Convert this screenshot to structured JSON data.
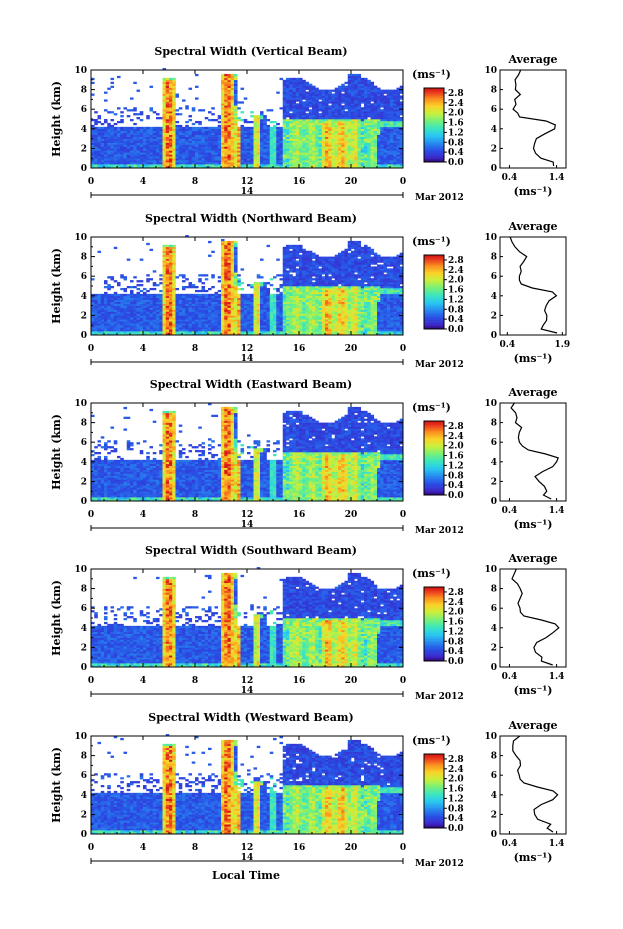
{
  "figure": {
    "xlabel": "Local Time",
    "date_label": "Mar 2012",
    "day_label": "14"
  },
  "chart_data": [
    {
      "type": "heatmap",
      "title": "Spectral Width (Vertical Beam)",
      "xlabel": "",
      "ylabel": "Height (km)",
      "x_ticks": [
        "0",
        "4",
        "8",
        "12",
        "16",
        "20",
        "0"
      ],
      "xlim": [
        0,
        24
      ],
      "y_ticks": [
        "0",
        "2",
        "4",
        "6",
        "8",
        "10"
      ],
      "ylim": [
        0,
        10
      ],
      "colorbar": {
        "label": "(ms⁻¹)",
        "ticks": [
          "0.0",
          "0.4",
          "0.8",
          "1.2",
          "1.6",
          "2.0",
          "2.4",
          "2.8"
        ],
        "range": [
          0,
          3.0
        ]
      },
      "profile": {
        "title": "Average",
        "xlabel": "(ms⁻¹)",
        "x_ticks": [
          "0.4",
          "1.4"
        ],
        "xlim": [
          0.2,
          1.6
        ],
        "heights": [
          0.2,
          0.6,
          1.0,
          1.5,
          2.0,
          2.5,
          3.0,
          3.5,
          4.0,
          4.4,
          4.8,
          5.2,
          5.6,
          6.0,
          6.5,
          7.0,
          7.5,
          8.0,
          8.5,
          9.0,
          9.5,
          10.0
        ],
        "values": [
          1.35,
          1.3,
          1.05,
          0.95,
          0.9,
          0.92,
          1.0,
          1.15,
          1.35,
          1.35,
          1.2,
          0.6,
          0.55,
          0.5,
          0.55,
          0.5,
          0.6,
          0.55,
          0.55,
          0.5,
          0.6,
          0.62
        ]
      }
    },
    {
      "type": "heatmap",
      "title": "Spectral Width (Northward Beam)",
      "xlabel": "",
      "ylabel": "Height (km)",
      "x_ticks": [
        "0",
        "4",
        "8",
        "12",
        "16",
        "20",
        "0"
      ],
      "xlim": [
        0,
        24
      ],
      "y_ticks": [
        "0",
        "2",
        "4",
        "6",
        "8",
        "10"
      ],
      "ylim": [
        0,
        10
      ],
      "colorbar": {
        "label": "(ms⁻¹)",
        "ticks": [
          "0.0",
          "0.4",
          "0.8",
          "1.2",
          "1.6",
          "2.0",
          "2.4",
          "2.8"
        ],
        "range": [
          0,
          3.0
        ]
      },
      "profile": {
        "title": "Average",
        "xlabel": "(ms⁻¹)",
        "x_ticks": [
          "0.4",
          "1.9"
        ],
        "xlim": [
          0.2,
          2.0
        ],
        "heights": [
          0.2,
          0.6,
          1.0,
          1.5,
          2.0,
          2.5,
          3.0,
          3.5,
          4.0,
          4.4,
          4.8,
          5.2,
          5.6,
          6.0,
          6.5,
          7.0,
          7.5,
          8.0,
          8.5,
          9.0,
          9.5,
          10.0
        ],
        "values": [
          1.75,
          1.3,
          1.4,
          1.45,
          1.5,
          1.4,
          1.45,
          1.55,
          1.75,
          1.65,
          1.1,
          0.8,
          0.75,
          0.7,
          0.75,
          0.72,
          0.85,
          0.95,
          0.75,
          0.6,
          0.5,
          0.45
        ]
      }
    },
    {
      "type": "heatmap",
      "title": "Spectral Width (Eastward Beam)",
      "xlabel": "",
      "ylabel": "Height (km)",
      "x_ticks": [
        "0",
        "4",
        "8",
        "12",
        "16",
        "20",
        "0"
      ],
      "xlim": [
        0,
        24
      ],
      "y_ticks": [
        "0",
        "2",
        "4",
        "6",
        "8",
        "10"
      ],
      "ylim": [
        0,
        10
      ],
      "colorbar": {
        "label": "(ms⁻¹)",
        "ticks": [
          "0.0",
          "0.4",
          "0.8",
          "1.2",
          "1.6",
          "2.0",
          "2.4",
          "2.8"
        ],
        "range": [
          0,
          3.0
        ]
      },
      "profile": {
        "title": "Average",
        "xlabel": "(ms⁻¹)",
        "x_ticks": [
          "0.4",
          "1.4"
        ],
        "xlim": [
          0.2,
          1.6
        ],
        "heights": [
          0.2,
          0.6,
          1.0,
          1.5,
          2.0,
          2.5,
          3.0,
          3.5,
          4.0,
          4.4,
          4.8,
          5.2,
          5.6,
          6.0,
          6.5,
          7.0,
          7.5,
          8.0,
          8.5,
          9.0,
          9.5,
          10.0
        ],
        "values": [
          1.3,
          1.1,
          1.2,
          1.15,
          1.05,
          0.95,
          1.1,
          1.3,
          1.42,
          1.45,
          1.15,
          0.8,
          0.68,
          0.62,
          0.6,
          0.6,
          0.65,
          0.55,
          0.55,
          0.5,
          0.45,
          0.52
        ]
      }
    },
    {
      "type": "heatmap",
      "title": "Spectral Width (Southward Beam)",
      "xlabel": "",
      "ylabel": "Height (km)",
      "x_ticks": [
        "0",
        "4",
        "8",
        "12",
        "16",
        "20",
        "0"
      ],
      "xlim": [
        0,
        24
      ],
      "y_ticks": [
        "0",
        "2",
        "4",
        "6",
        "8",
        "10"
      ],
      "ylim": [
        0,
        10
      ],
      "colorbar": {
        "label": "(ms⁻¹)",
        "ticks": [
          "0.0",
          "0.4",
          "0.8",
          "1.2",
          "1.6",
          "2.0",
          "2.4",
          "2.8"
        ],
        "range": [
          0,
          3.0
        ]
      },
      "profile": {
        "title": "Average",
        "xlabel": "(ms⁻¹)",
        "x_ticks": [
          "0.4",
          "1.4"
        ],
        "xlim": [
          0.2,
          1.6
        ],
        "heights": [
          0.2,
          0.6,
          1.0,
          1.5,
          2.0,
          2.5,
          3.0,
          3.5,
          4.0,
          4.4,
          4.8,
          5.2,
          5.6,
          6.0,
          6.5,
          7.0,
          7.5,
          8.0,
          8.5,
          9.0,
          9.5,
          10.0
        ],
        "values": [
          1.3,
          1.05,
          1.1,
          0.95,
          0.9,
          0.95,
          1.15,
          1.35,
          1.45,
          1.4,
          1.1,
          0.7,
          0.62,
          0.6,
          0.58,
          0.6,
          0.65,
          0.6,
          0.55,
          0.45,
          0.5,
          0.55
        ]
      }
    },
    {
      "type": "heatmap",
      "title": "Spectral Width (Westward Beam)",
      "xlabel": "",
      "ylabel": "Height (km)",
      "x_ticks": [
        "0",
        "4",
        "8",
        "12",
        "16",
        "20",
        "0"
      ],
      "xlim": [
        0,
        24
      ],
      "y_ticks": [
        "0",
        "2",
        "4",
        "6",
        "8",
        "10"
      ],
      "ylim": [
        0,
        10
      ],
      "colorbar": {
        "label": "(ms⁻¹)",
        "ticks": [
          "0.0",
          "0.4",
          "0.8",
          "1.2",
          "1.6",
          "2.0",
          "2.4",
          "2.8"
        ],
        "range": [
          0,
          3.0
        ]
      },
      "profile": {
        "title": "Average",
        "xlabel": "(ms⁻¹)",
        "x_ticks": [
          "0.4",
          "1.4"
        ],
        "xlim": [
          0.2,
          1.6
        ],
        "heights": [
          0.2,
          0.6,
          1.0,
          1.5,
          2.0,
          2.5,
          3.0,
          3.5,
          4.0,
          4.4,
          4.8,
          5.2,
          5.6,
          6.0,
          6.5,
          7.0,
          7.5,
          8.0,
          8.5,
          9.0,
          9.5,
          10.0
        ],
        "values": [
          1.35,
          1.2,
          1.25,
          1.0,
          0.95,
          0.9,
          1.05,
          1.3,
          1.4,
          1.35,
          1.0,
          0.7,
          0.63,
          0.6,
          0.6,
          0.62,
          0.62,
          0.55,
          0.5,
          0.45,
          0.5,
          0.6
        ]
      }
    }
  ]
}
